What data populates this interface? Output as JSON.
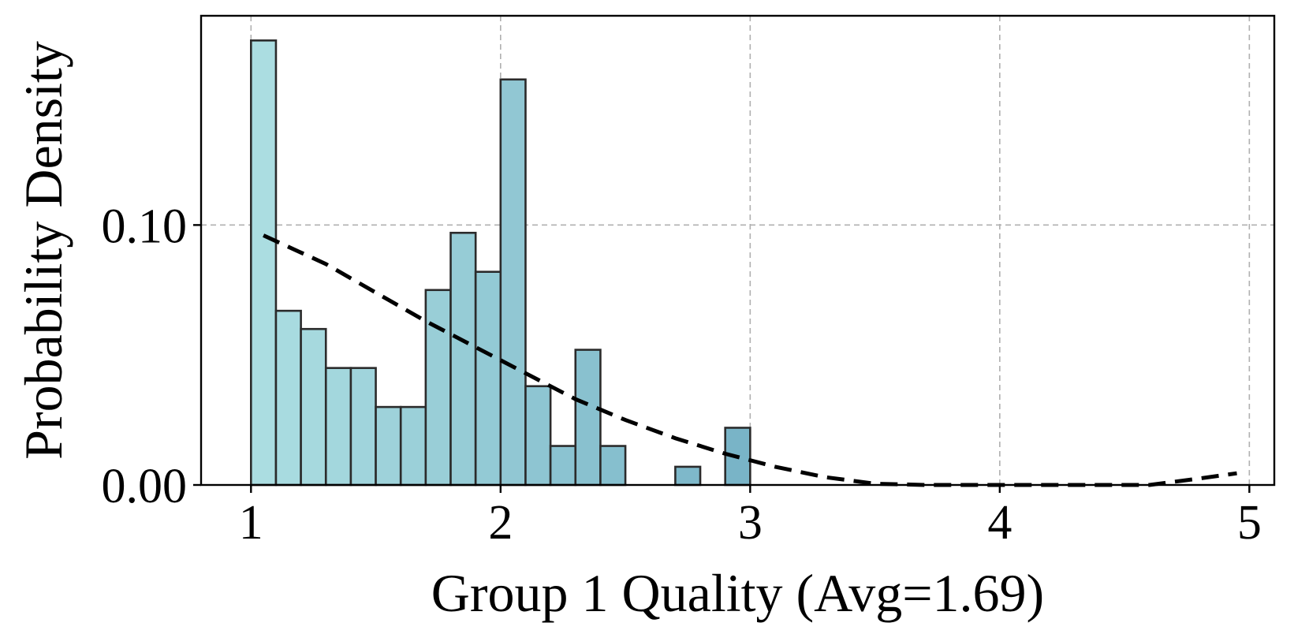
{
  "chart_data": {
    "type": "bar",
    "subtype": "histogram",
    "xlabel": "Group 1 Quality (Avg=1.69)",
    "ylabel": "Probability Density",
    "xlim": [
      0.8,
      5.1
    ],
    "ylim": [
      0,
      0.1805
    ],
    "xticks": [
      1,
      2,
      3,
      4,
      5
    ],
    "xtick_labels": [
      "1",
      "2",
      "3",
      "4",
      "5"
    ],
    "yticks": [
      0.0,
      0.1
    ],
    "ytick_labels": [
      "0.00",
      "0.10"
    ],
    "grid": true,
    "bin_width": 0.1,
    "bins": [
      {
        "left": 1.0,
        "value": 0.171
      },
      {
        "left": 1.1,
        "value": 0.067
      },
      {
        "left": 1.2,
        "value": 0.06
      },
      {
        "left": 1.3,
        "value": 0.045
      },
      {
        "left": 1.4,
        "value": 0.045
      },
      {
        "left": 1.5,
        "value": 0.03
      },
      {
        "left": 1.6,
        "value": 0.03
      },
      {
        "left": 1.7,
        "value": 0.075
      },
      {
        "left": 1.8,
        "value": 0.097
      },
      {
        "left": 1.9,
        "value": 0.082
      },
      {
        "left": 2.0,
        "value": 0.156
      },
      {
        "left": 2.1,
        "value": 0.038
      },
      {
        "left": 2.2,
        "value": 0.015
      },
      {
        "left": 2.3,
        "value": 0.052
      },
      {
        "left": 2.4,
        "value": 0.015
      },
      {
        "left": 2.7,
        "value": 0.007
      },
      {
        "left": 2.9,
        "value": 0.022
      }
    ],
    "curve": {
      "style": "dashed",
      "x": [
        1.05,
        1.3,
        1.5,
        1.7,
        1.9,
        2.1,
        2.3,
        2.5,
        2.7,
        2.9,
        3.1,
        3.3,
        3.5,
        3.7,
        4.0,
        4.3,
        4.6,
        4.8,
        4.95
      ],
      "y": [
        0.096,
        0.085,
        0.074,
        0.063,
        0.053,
        0.043,
        0.033,
        0.025,
        0.018,
        0.012,
        0.007,
        0.003,
        0.0005,
        0.0,
        0.0,
        0.0,
        0.0,
        0.0025,
        0.0045
      ]
    },
    "colors": {
      "bar_light": "#abdde1",
      "bar_dark": "#79b4c7",
      "bar_edge": "#2b2b2b",
      "curve": "#000000",
      "grid": "#b0b0b0"
    }
  }
}
